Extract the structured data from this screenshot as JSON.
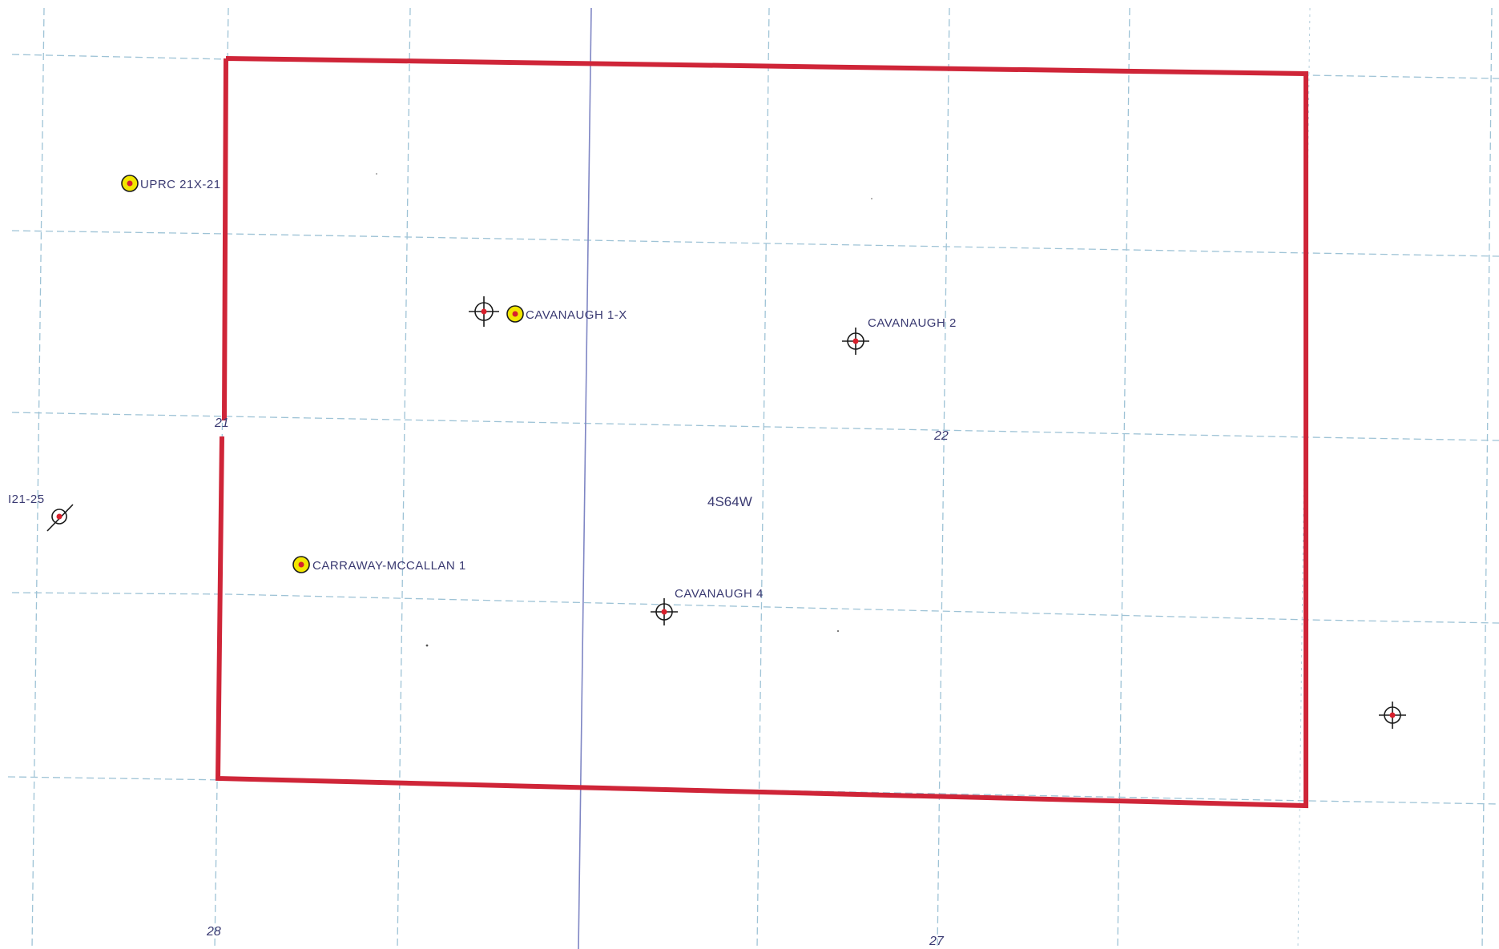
{
  "map": {
    "township_label": "4S64W",
    "section_labels": [
      "21",
      "22",
      "28",
      "27"
    ],
    "wells": [
      {
        "name": "UPRC 21X-21",
        "symbol": "producing-well-icon",
        "interactable": true
      },
      {
        "name": "CAVANAUGH 1-X",
        "symbol": "producing-well-icon",
        "interactable": true
      },
      {
        "name": "CAVANAUGH 2",
        "symbol": "dry-hole-icon",
        "interactable": true
      },
      {
        "name": "CARRAWAY-MCCALLAN 1",
        "symbol": "producing-well-icon",
        "interactable": true
      },
      {
        "name": "CAVANAUGH 4",
        "symbol": "dry-hole-icon",
        "interactable": true
      },
      {
        "name": "I21-25",
        "symbol": "plugged-abandoned-well-icon",
        "interactable": true
      }
    ],
    "unlabeled_symbols": [
      "dry-hole-icon",
      "dry-hole-icon"
    ],
    "colors": {
      "boundary": "#cf2538",
      "producing_fill": "#f2e600",
      "well_center": "#d8202c",
      "label_text": "#3a3a72",
      "grid": "#9ec3d6",
      "township_line": "#7f86c4"
    }
  }
}
